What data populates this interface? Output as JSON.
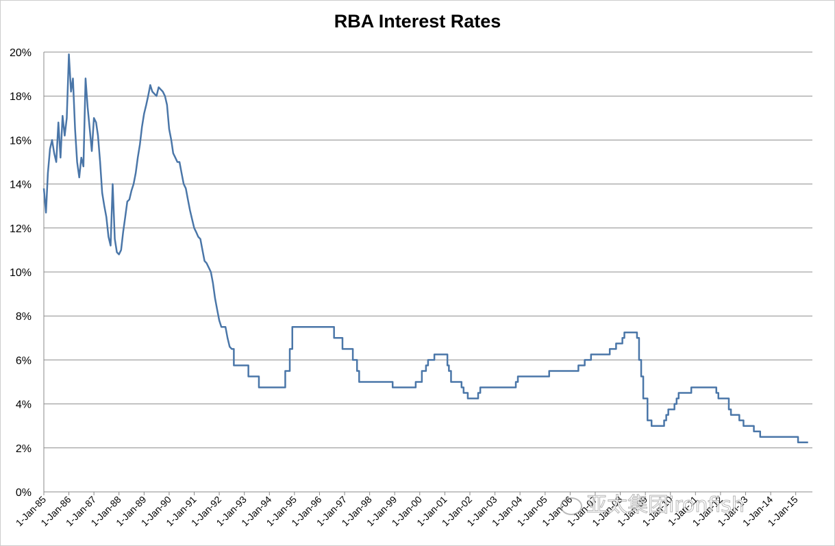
{
  "chart_data": {
    "type": "line",
    "title": "RBA Interest Rates",
    "xlabel": "",
    "ylabel": "",
    "ylim": [
      0,
      20
    ],
    "y_ticks": [
      0,
      2,
      4,
      6,
      8,
      10,
      12,
      14,
      16,
      18,
      20
    ],
    "y_tick_labels": [
      "0%",
      "2%",
      "4%",
      "6%",
      "8%",
      "10%",
      "12%",
      "14%",
      "16%",
      "18%",
      "20%"
    ],
    "x_range": [
      "1985-01-01",
      "2015-09-01"
    ],
    "x_ticks": [
      "1985-01-01",
      "1986-01-01",
      "1987-01-01",
      "1988-01-01",
      "1989-01-01",
      "1990-01-01",
      "1991-01-01",
      "1992-01-01",
      "1993-01-01",
      "1994-01-01",
      "1995-01-01",
      "1996-01-01",
      "1997-01-01",
      "1998-01-01",
      "1999-01-01",
      "2000-01-01",
      "2001-01-01",
      "2002-01-01",
      "2003-01-01",
      "2004-01-01",
      "2005-01-01",
      "2006-01-01",
      "2007-01-01",
      "2008-01-01",
      "2009-01-01",
      "2010-01-01",
      "2011-01-01",
      "2012-01-01",
      "2013-01-01",
      "2014-01-01",
      "2015-01-01"
    ],
    "x_tick_labels": [
      "1-Jan-85",
      "1-Jan-86",
      "1-Jan-87",
      "1-Jan-88",
      "1-Jan-89",
      "1-Jan-90",
      "1-Jan-91",
      "1-Jan-92",
      "1-Jan-93",
      "1-Jan-94",
      "1-Jan-95",
      "1-Jan-96",
      "1-Jan-97",
      "1-Jan-98",
      "1-Jan-99",
      "1-Jan-00",
      "1-Jan-01",
      "1-Jan-02",
      "1-Jan-03",
      "1-Jan-04",
      "1-Jan-05",
      "1-Jan-06",
      "1-Jan-07",
      "1-Jan-08",
      "1-Jan-09",
      "1-Jan-10",
      "1-Jan-11",
      "1-Jan-12",
      "1-Jan-13",
      "1-Jan-14",
      "1-Jan-15"
    ],
    "grid": "horizontal",
    "legend": "none",
    "series": [
      {
        "color": "#4a76a8",
        "step": false,
        "points": [
          [
            "1985-01-01",
            13.8
          ],
          [
            "1985-02-01",
            12.7
          ],
          [
            "1985-03-01",
            14.5
          ],
          [
            "1985-04-01",
            15.6
          ],
          [
            "1985-05-01",
            16.0
          ],
          [
            "1985-06-01",
            15.4
          ],
          [
            "1985-07-01",
            15.0
          ],
          [
            "1985-08-01",
            16.8
          ],
          [
            "1985-09-01",
            15.2
          ],
          [
            "1985-10-01",
            17.1
          ],
          [
            "1985-11-01",
            16.2
          ],
          [
            "1985-12-01",
            17.0
          ],
          [
            "1986-01-01",
            19.9
          ],
          [
            "1986-02-01",
            18.2
          ],
          [
            "1986-03-01",
            18.8
          ],
          [
            "1986-04-01",
            16.5
          ],
          [
            "1986-05-01",
            15.0
          ],
          [
            "1986-06-01",
            14.3
          ],
          [
            "1986-07-01",
            15.2
          ],
          [
            "1986-08-01",
            14.8
          ],
          [
            "1986-09-01",
            18.8
          ],
          [
            "1986-10-01",
            17.5
          ],
          [
            "1986-11-01",
            16.5
          ],
          [
            "1986-12-01",
            15.5
          ],
          [
            "1987-01-01",
            17.0
          ],
          [
            "1987-02-01",
            16.8
          ],
          [
            "1987-03-01",
            16.2
          ],
          [
            "1987-04-01",
            15.0
          ],
          [
            "1987-05-01",
            13.6
          ],
          [
            "1987-06-01",
            13.0
          ],
          [
            "1987-07-01",
            12.5
          ],
          [
            "1987-08-01",
            11.6
          ],
          [
            "1987-09-01",
            11.2
          ],
          [
            "1987-10-01",
            14.0
          ],
          [
            "1987-11-01",
            11.5
          ],
          [
            "1987-12-01",
            10.9
          ],
          [
            "1988-01-01",
            10.8
          ],
          [
            "1988-02-01",
            11.0
          ],
          [
            "1988-03-01",
            11.8
          ],
          [
            "1988-04-01",
            12.5
          ],
          [
            "1988-05-01",
            13.2
          ],
          [
            "1988-06-01",
            13.3
          ],
          [
            "1988-07-01",
            13.7
          ],
          [
            "1988-08-01",
            14.0
          ],
          [
            "1988-09-01",
            14.5
          ],
          [
            "1988-10-01",
            15.2
          ],
          [
            "1988-11-01",
            15.8
          ],
          [
            "1988-12-01",
            16.6
          ],
          [
            "1989-01-01",
            17.2
          ],
          [
            "1989-02-01",
            17.6
          ],
          [
            "1989-03-01",
            18.0
          ],
          [
            "1989-04-01",
            18.5
          ],
          [
            "1989-05-01",
            18.2
          ],
          [
            "1989-06-01",
            18.1
          ],
          [
            "1989-07-01",
            18.0
          ],
          [
            "1989-08-01",
            18.4
          ],
          [
            "1989-09-01",
            18.3
          ],
          [
            "1989-10-01",
            18.2
          ],
          [
            "1989-11-01",
            18.0
          ],
          [
            "1989-12-01",
            17.6
          ],
          [
            "1990-01-01",
            16.5
          ],
          [
            "1990-02-01",
            16.0
          ],
          [
            "1990-03-01",
            15.4
          ],
          [
            "1990-04-01",
            15.2
          ],
          [
            "1990-05-01",
            15.0
          ],
          [
            "1990-06-01",
            15.0
          ],
          [
            "1990-07-01",
            14.5
          ],
          [
            "1990-08-01",
            14.0
          ],
          [
            "1990-09-01",
            13.8
          ],
          [
            "1990-10-01",
            13.3
          ],
          [
            "1990-11-01",
            12.8
          ],
          [
            "1990-12-01",
            12.4
          ],
          [
            "1991-01-01",
            12.0
          ],
          [
            "1991-02-01",
            11.8
          ],
          [
            "1991-03-01",
            11.6
          ],
          [
            "1991-04-01",
            11.5
          ],
          [
            "1991-05-01",
            11.0
          ],
          [
            "1991-06-01",
            10.5
          ],
          [
            "1991-07-01",
            10.4
          ],
          [
            "1991-08-01",
            10.2
          ],
          [
            "1991-09-01",
            10.0
          ],
          [
            "1991-10-01",
            9.5
          ],
          [
            "1991-11-01",
            8.8
          ],
          [
            "1991-12-01",
            8.3
          ],
          [
            "1992-01-01",
            7.8
          ],
          [
            "1992-02-01",
            7.5
          ],
          [
            "1992-03-01",
            7.5
          ],
          [
            "1992-04-01",
            7.5
          ],
          [
            "1992-05-01",
            7.0
          ],
          [
            "1992-06-01",
            6.6
          ],
          [
            "1992-07-01",
            6.5
          ],
          [
            "1992-08-01",
            5.75
          ],
          [
            "1993-01-01",
            5.75
          ],
          [
            "1993-02-01",
            5.75
          ],
          [
            "1993-03-01",
            5.25
          ],
          [
            "1993-07-01",
            5.25
          ],
          [
            "1993-08-01",
            4.75
          ],
          [
            "1994-08-01",
            4.75
          ],
          [
            "1994-08-20",
            5.5
          ],
          [
            "1994-10-01",
            5.5
          ],
          [
            "1994-10-25",
            6.5
          ],
          [
            "1994-12-01",
            7.5
          ],
          [
            "1996-07-01",
            7.5
          ],
          [
            "1996-07-31",
            7.0
          ],
          [
            "1996-10-01",
            7.0
          ],
          [
            "1996-12-01",
            6.5
          ],
          [
            "1997-05-01",
            6.0
          ],
          [
            "1997-07-01",
            5.5
          ],
          [
            "1997-08-01",
            5.0
          ],
          [
            "1998-12-01",
            5.0
          ],
          [
            "1998-12-02",
            4.75
          ],
          [
            "1999-11-01",
            4.75
          ],
          [
            "1999-11-03",
            5.0
          ],
          [
            "2000-02-01",
            5.5
          ],
          [
            "2000-04-01",
            5.75
          ],
          [
            "2000-05-01",
            6.0
          ],
          [
            "2000-08-01",
            6.25
          ],
          [
            "2001-02-01",
            6.25
          ],
          [
            "2001-02-07",
            5.75
          ],
          [
            "2001-03-01",
            5.5
          ],
          [
            "2001-04-01",
            5.0
          ],
          [
            "2001-09-01",
            4.75
          ],
          [
            "2001-10-01",
            4.5
          ],
          [
            "2001-12-01",
            4.25
          ],
          [
            "2002-05-01",
            4.5
          ],
          [
            "2002-06-01",
            4.75
          ],
          [
            "2003-11-01",
            5.0
          ],
          [
            "2003-12-01",
            5.25
          ],
          [
            "2005-03-01",
            5.5
          ],
          [
            "2006-05-01",
            5.75
          ],
          [
            "2006-08-01",
            6.0
          ],
          [
            "2006-11-01",
            6.25
          ],
          [
            "2007-08-01",
            6.5
          ],
          [
            "2007-11-01",
            6.75
          ],
          [
            "2008-02-01",
            7.0
          ],
          [
            "2008-03-01",
            7.25
          ],
          [
            "2008-09-01",
            7.0
          ],
          [
            "2008-10-01",
            6.0
          ],
          [
            "2008-11-01",
            5.25
          ],
          [
            "2008-12-01",
            4.25
          ],
          [
            "2009-02-01",
            3.25
          ],
          [
            "2009-04-01",
            3.0
          ],
          [
            "2009-10-01",
            3.25
          ],
          [
            "2009-11-01",
            3.5
          ],
          [
            "2009-12-01",
            3.75
          ],
          [
            "2010-03-01",
            4.0
          ],
          [
            "2010-04-01",
            4.25
          ],
          [
            "2010-05-01",
            4.5
          ],
          [
            "2010-11-01",
            4.75
          ],
          [
            "2011-11-01",
            4.5
          ],
          [
            "2011-12-01",
            4.25
          ],
          [
            "2012-05-01",
            3.75
          ],
          [
            "2012-06-01",
            3.5
          ],
          [
            "2012-10-01",
            3.25
          ],
          [
            "2012-12-01",
            3.0
          ],
          [
            "2013-05-01",
            2.75
          ],
          [
            "2013-08-01",
            2.5
          ],
          [
            "2015-02-01",
            2.5
          ],
          [
            "2015-02-04",
            2.25
          ],
          [
            "2015-06-30",
            2.25
          ]
        ]
      }
    ]
  },
  "watermark": {
    "text": "亚太集团ironfish"
  }
}
